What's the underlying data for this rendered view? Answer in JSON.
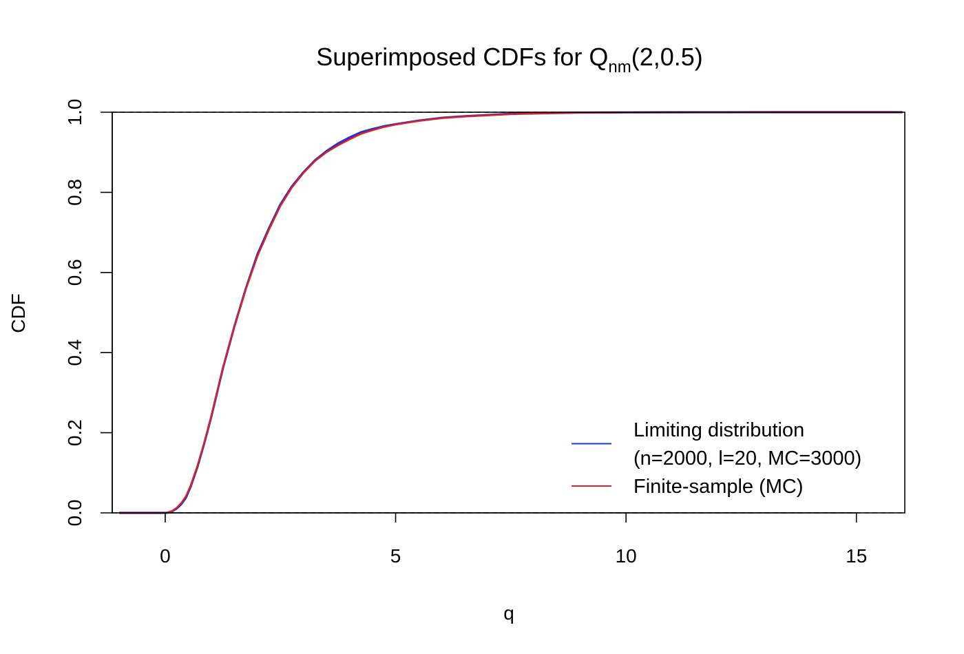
{
  "chart_data": {
    "type": "line",
    "title": {
      "main": "Superimposed CDFs for Q",
      "subscript": "nm",
      "suffix": "(2,0.5)"
    },
    "xlabel": "q",
    "ylabel": "CDF",
    "xlim": [
      -1.15,
      16.05
    ],
    "ylim": [
      0,
      1
    ],
    "x_ticks": [
      0,
      5,
      10,
      15
    ],
    "x_tick_labels": [
      "0",
      "5",
      "10",
      "15"
    ],
    "y_ticks": [
      0,
      0.2,
      0.4,
      0.6,
      0.8,
      1.0
    ],
    "y_tick_labels": [
      "0.0",
      "0.2",
      "0.4",
      "0.6",
      "0.8",
      "1.0"
    ],
    "reference_lines": [
      0,
      1
    ],
    "grid": false,
    "legend": {
      "position": "bottom-right",
      "entries": [
        {
          "lines": [
            "Limiting distribution",
            "(n=2000, l=20, MC=3000)"
          ],
          "color": "#2233cc"
        },
        {
          "lines": [
            "Finite-sample (MC)"
          ],
          "color": "#dd2222"
        }
      ]
    },
    "series": [
      {
        "color": "#2233cc",
        "x": [
          -1,
          0,
          0.05,
          0.15,
          0.25,
          0.35,
          0.45,
          0.55,
          0.7,
          0.85,
          1.0,
          1.25,
          1.5,
          1.75,
          2.0,
          2.25,
          2.5,
          2.75,
          3.0,
          3.25,
          3.5,
          3.75,
          4.0,
          4.25,
          4.5,
          4.75,
          5.0,
          5.5,
          6.0,
          6.5,
          7.0,
          7.5,
          8.0,
          9.0,
          10.0,
          11.0,
          12.0,
          13.0,
          14.0,
          15.0,
          16.0
        ],
        "y": [
          0,
          0,
          0.0005,
          0.004,
          0.011,
          0.022,
          0.038,
          0.065,
          0.115,
          0.175,
          0.24,
          0.36,
          0.465,
          0.56,
          0.645,
          0.71,
          0.77,
          0.815,
          0.85,
          0.88,
          0.903,
          0.922,
          0.937,
          0.95,
          0.958,
          0.965,
          0.97,
          0.979,
          0.986,
          0.99,
          0.993,
          0.996,
          0.997,
          0.999,
          0.9995,
          0.9998,
          0.9999,
          1,
          1,
          1,
          1
        ]
      },
      {
        "color": "#dd2222",
        "x": [
          -1,
          0,
          0.05,
          0.15,
          0.25,
          0.35,
          0.45,
          0.55,
          0.7,
          0.85,
          1.0,
          1.25,
          1.5,
          1.75,
          2.0,
          2.25,
          2.5,
          2.75,
          3.0,
          3.25,
          3.5,
          3.75,
          4.0,
          4.25,
          4.5,
          4.75,
          5.0,
          5.5,
          6.0,
          6.5,
          7.0,
          7.5,
          8.0,
          9.0,
          10.0,
          11.0,
          12.0,
          13.0,
          14.0,
          15.0,
          16.0
        ],
        "y": [
          0,
          0,
          0.0008,
          0.005,
          0.013,
          0.025,
          0.042,
          0.068,
          0.118,
          0.177,
          0.242,
          0.362,
          0.465,
          0.558,
          0.64,
          0.706,
          0.766,
          0.812,
          0.848,
          0.878,
          0.9,
          0.917,
          0.932,
          0.946,
          0.955,
          0.963,
          0.969,
          0.978,
          0.985,
          0.989,
          0.992,
          0.995,
          0.997,
          0.999,
          0.9995,
          0.9998,
          0.9999,
          1,
          1,
          1,
          1
        ]
      }
    ]
  }
}
